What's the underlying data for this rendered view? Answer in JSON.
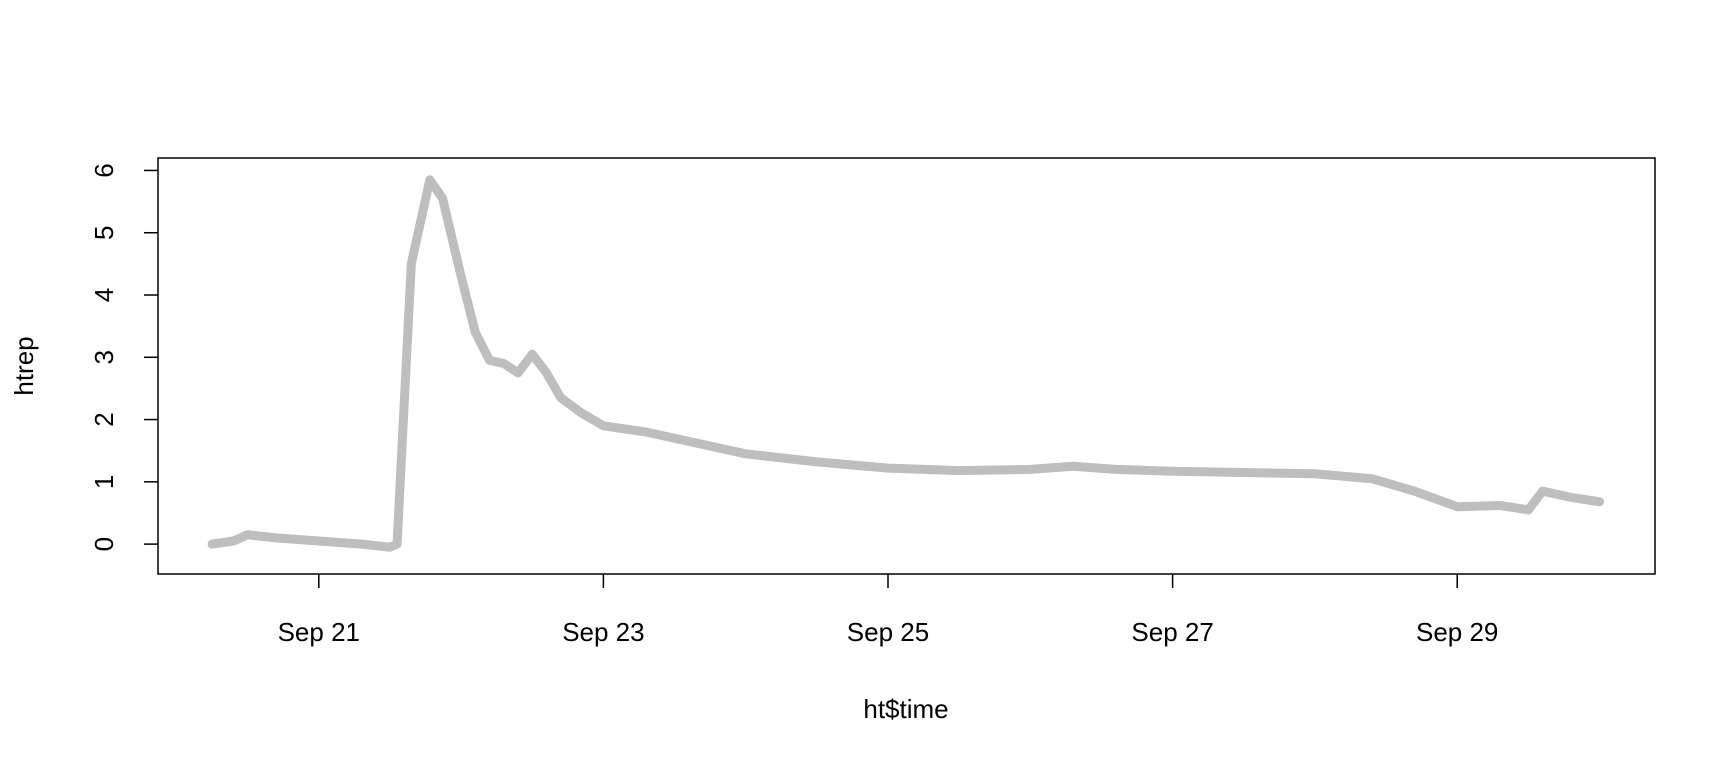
{
  "chart_data": {
    "type": "line",
    "x_label": "ht$time",
    "y_label": "htrep",
    "x": [
      20.25,
      20.4,
      20.5,
      20.7,
      21.0,
      21.3,
      21.5,
      21.55,
      21.65,
      21.78,
      21.87,
      22.0,
      22.1,
      22.2,
      22.3,
      22.4,
      22.5,
      22.6,
      22.7,
      22.85,
      23.0,
      23.3,
      23.6,
      24.0,
      24.5,
      25.0,
      25.5,
      26.0,
      26.3,
      26.6,
      27.0,
      27.5,
      28.0,
      28.4,
      28.7,
      29.0,
      29.3,
      29.5,
      29.6,
      29.8,
      30.0
    ],
    "series": [
      {
        "name": "htrep",
        "color": "#bebebe",
        "values": [
          0.0,
          0.05,
          0.15,
          0.1,
          0.05,
          0.0,
          -0.05,
          0.0,
          4.5,
          5.85,
          5.55,
          4.3,
          3.4,
          2.95,
          2.9,
          2.75,
          3.05,
          2.75,
          2.35,
          2.1,
          1.9,
          1.8,
          1.65,
          1.45,
          1.32,
          1.22,
          1.18,
          1.2,
          1.25,
          1.2,
          1.17,
          1.15,
          1.13,
          1.05,
          0.85,
          0.6,
          0.62,
          0.55,
          0.85,
          0.75,
          0.68
        ]
      }
    ],
    "xlim": [
      19.87,
      30.39
    ],
    "xticks": [
      {
        "value": 21,
        "label": "Sep 21"
      },
      {
        "value": 23,
        "label": "Sep 23"
      },
      {
        "value": 25,
        "label": "Sep 25"
      },
      {
        "value": 27,
        "label": "Sep 27"
      },
      {
        "value": 29,
        "label": "Sep 29"
      }
    ],
    "ylim": [
      -0.48,
      6.2
    ],
    "yticks": [
      0,
      1,
      2,
      3,
      4,
      5,
      6
    ]
  }
}
